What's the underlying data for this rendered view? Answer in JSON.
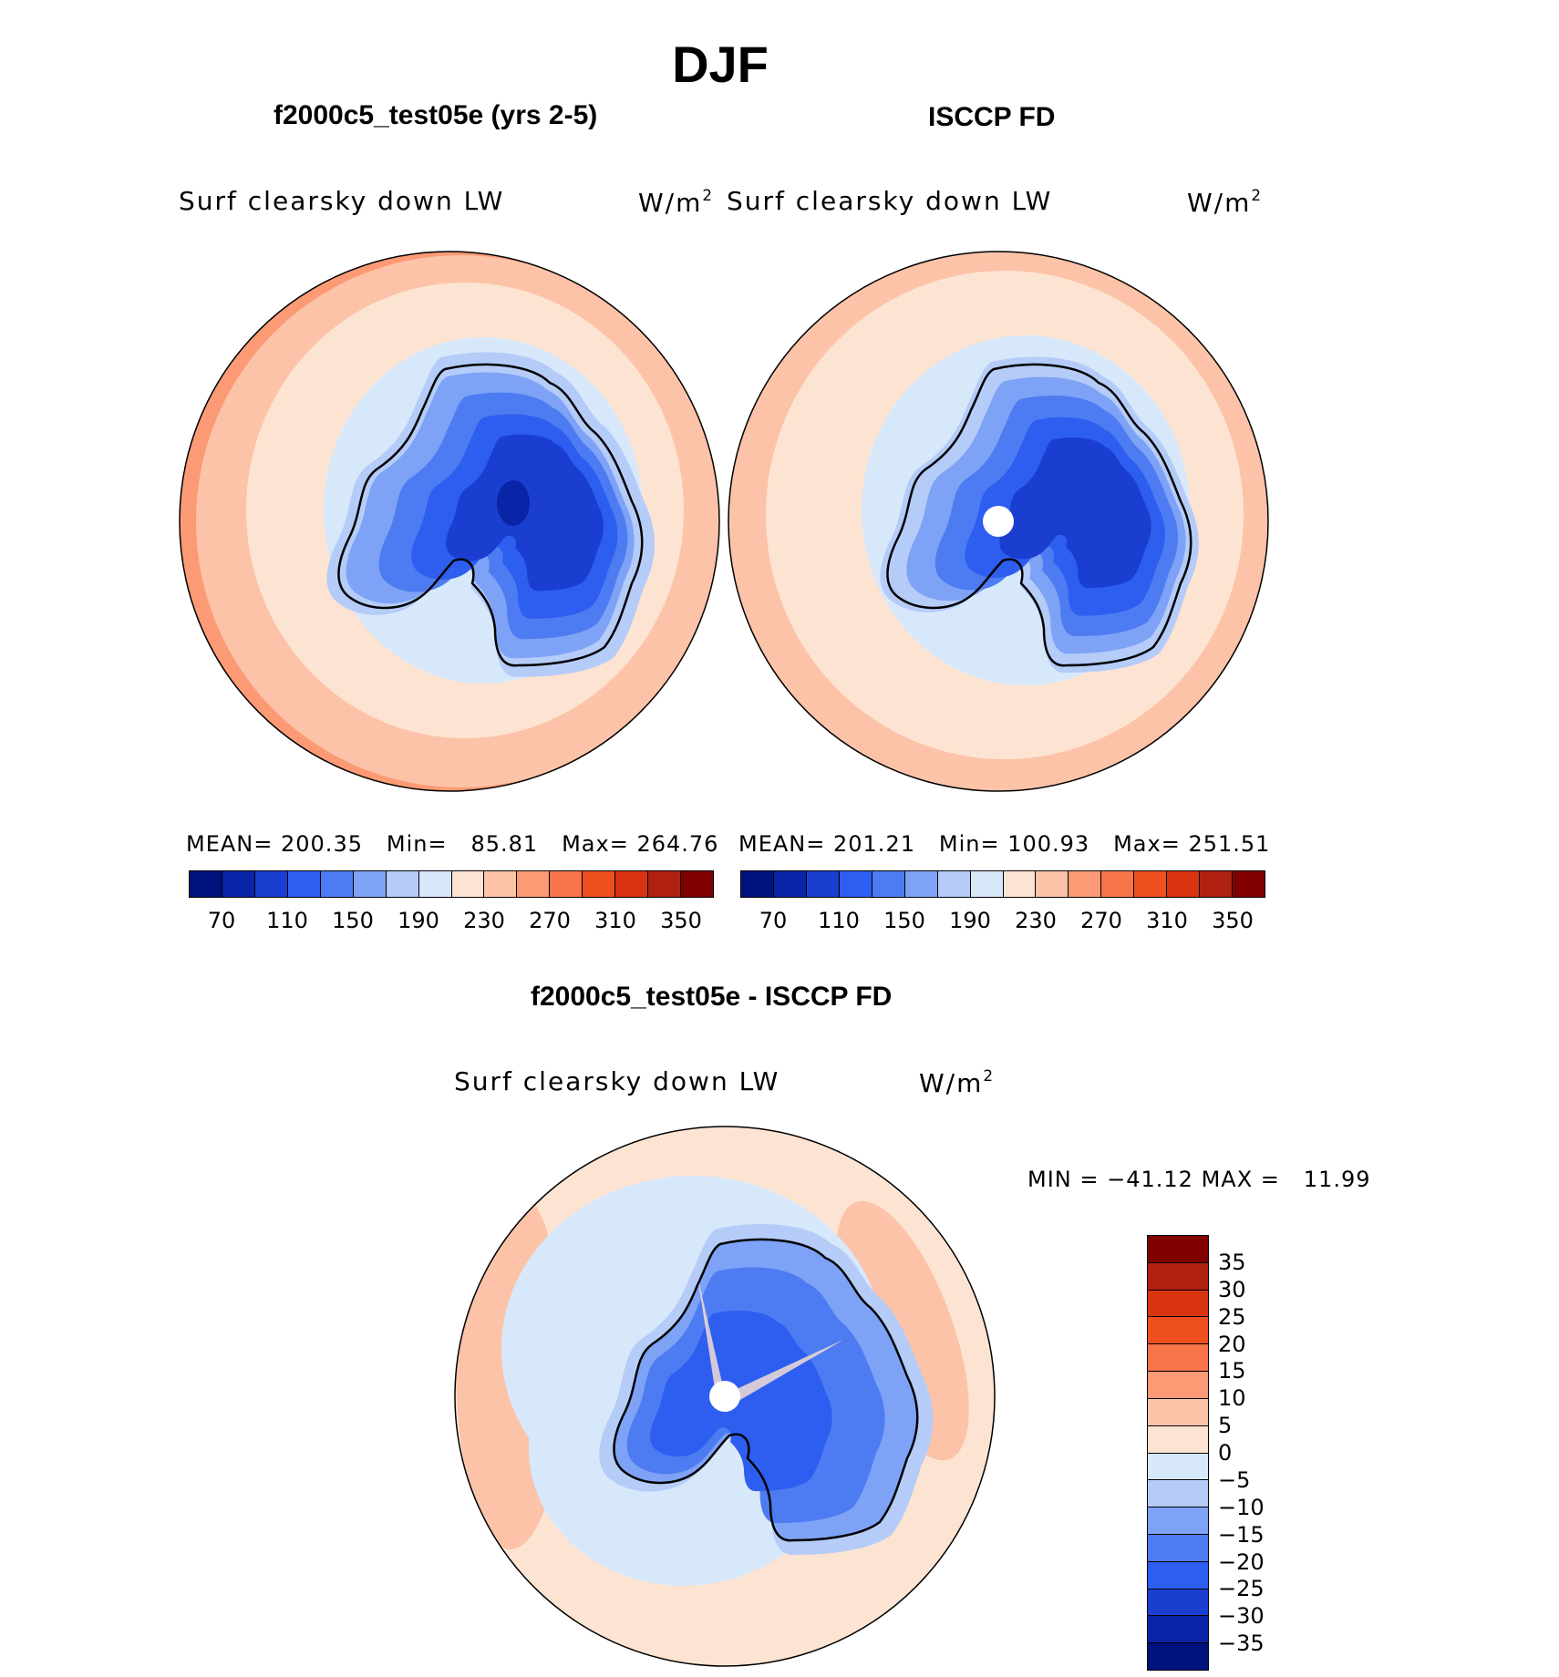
{
  "title": "DJF",
  "units_base": "W/m",
  "units_exp": "2",
  "panels": [
    {
      "title": "f2000c5_test05e (yrs 2-5)",
      "variable": "Surf  clearsky  down  LW",
      "mean_label": "MEAN=",
      "mean": "200.35",
      "min_label": "Min=",
      "min": "85.81",
      "max_label": "Max=",
      "max": "264.76"
    },
    {
      "title": "ISCCP FD",
      "variable": "Surf  clearsky  down  LW",
      "mean_label": "MEAN=",
      "mean": "201.21",
      "min_label": "Min=",
      "min": "100.93",
      "max_label": "Max=",
      "max": "251.51"
    }
  ],
  "diff": {
    "title": "f2000c5_test05e - ISCCP FD",
    "variable": "Surf  clearsky  down  LW",
    "min_label": "MIN  =",
    "min": "−41.12",
    "max_label": "MAX  =",
    "max": "11.99"
  },
  "colorbar_abs": {
    "colors": [
      "#00127d",
      "#0a24a8",
      "#1a3fd0",
      "#2e5ef0",
      "#4d7cf2",
      "#7ea2f5",
      "#b5ccf9",
      "#d8e8fb",
      "#fde4d2",
      "#fcc3a8",
      "#fb9a74",
      "#f8744a",
      "#f05020",
      "#d93410",
      "#b02010",
      "#800000"
    ],
    "labels": [
      "70",
      "110",
      "150",
      "190",
      "230",
      "270",
      "310",
      "350"
    ]
  },
  "colorbar_diff": {
    "colors": [
      "#800000",
      "#b02010",
      "#d93410",
      "#f05020",
      "#f8744a",
      "#fb9a74",
      "#fcc3a8",
      "#fde4d2",
      "#d8e8fb",
      "#b5ccf9",
      "#7ea2f5",
      "#4d7cf2",
      "#2e5ef0",
      "#1a3fd0",
      "#0a24a8",
      "#00127d"
    ],
    "labels": [
      "35",
      "30",
      "25",
      "20",
      "15",
      "10",
      "5",
      "0",
      "−5",
      "−10",
      "−15",
      "−20",
      "−25",
      "−30",
      "−35"
    ]
  }
}
